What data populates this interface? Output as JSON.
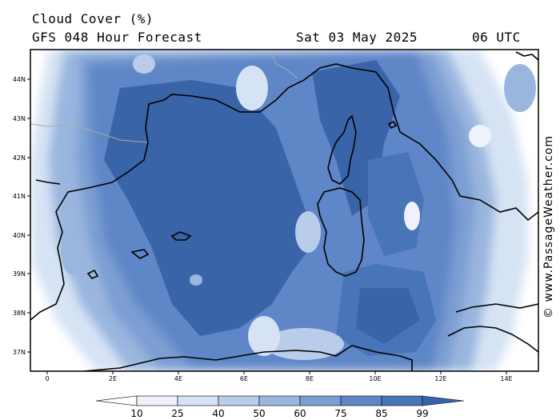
{
  "header": {
    "title": "Cloud Cover (%)",
    "model": "GFS 048 Hour Forecast",
    "date": "Sat 03 May 2025",
    "time": "06 UTC"
  },
  "credit": "© www.PassageWeather.com",
  "axes": {
    "lon_labels": [
      "0",
      "2E",
      "4E",
      "6E",
      "8E",
      "10E",
      "12E",
      "14E"
    ],
    "lat_labels": [
      "44N",
      "43N",
      "42N",
      "41N",
      "40N",
      "39N",
      "38N",
      "37N"
    ]
  },
  "colorbar": {
    "levels": [
      "10",
      "25",
      "40",
      "50",
      "60",
      "75",
      "85",
      "99"
    ],
    "colors": [
      "#ffffff",
      "#eef3fb",
      "#d6e3f4",
      "#b9cdea",
      "#9ab6df",
      "#7b9ed3",
      "#5f86c6",
      "#4874b8",
      "#3a64a8"
    ]
  },
  "map": {
    "background": "#ffffff",
    "coast_color": "#000000",
    "border_color": "#aaaaaa"
  }
}
